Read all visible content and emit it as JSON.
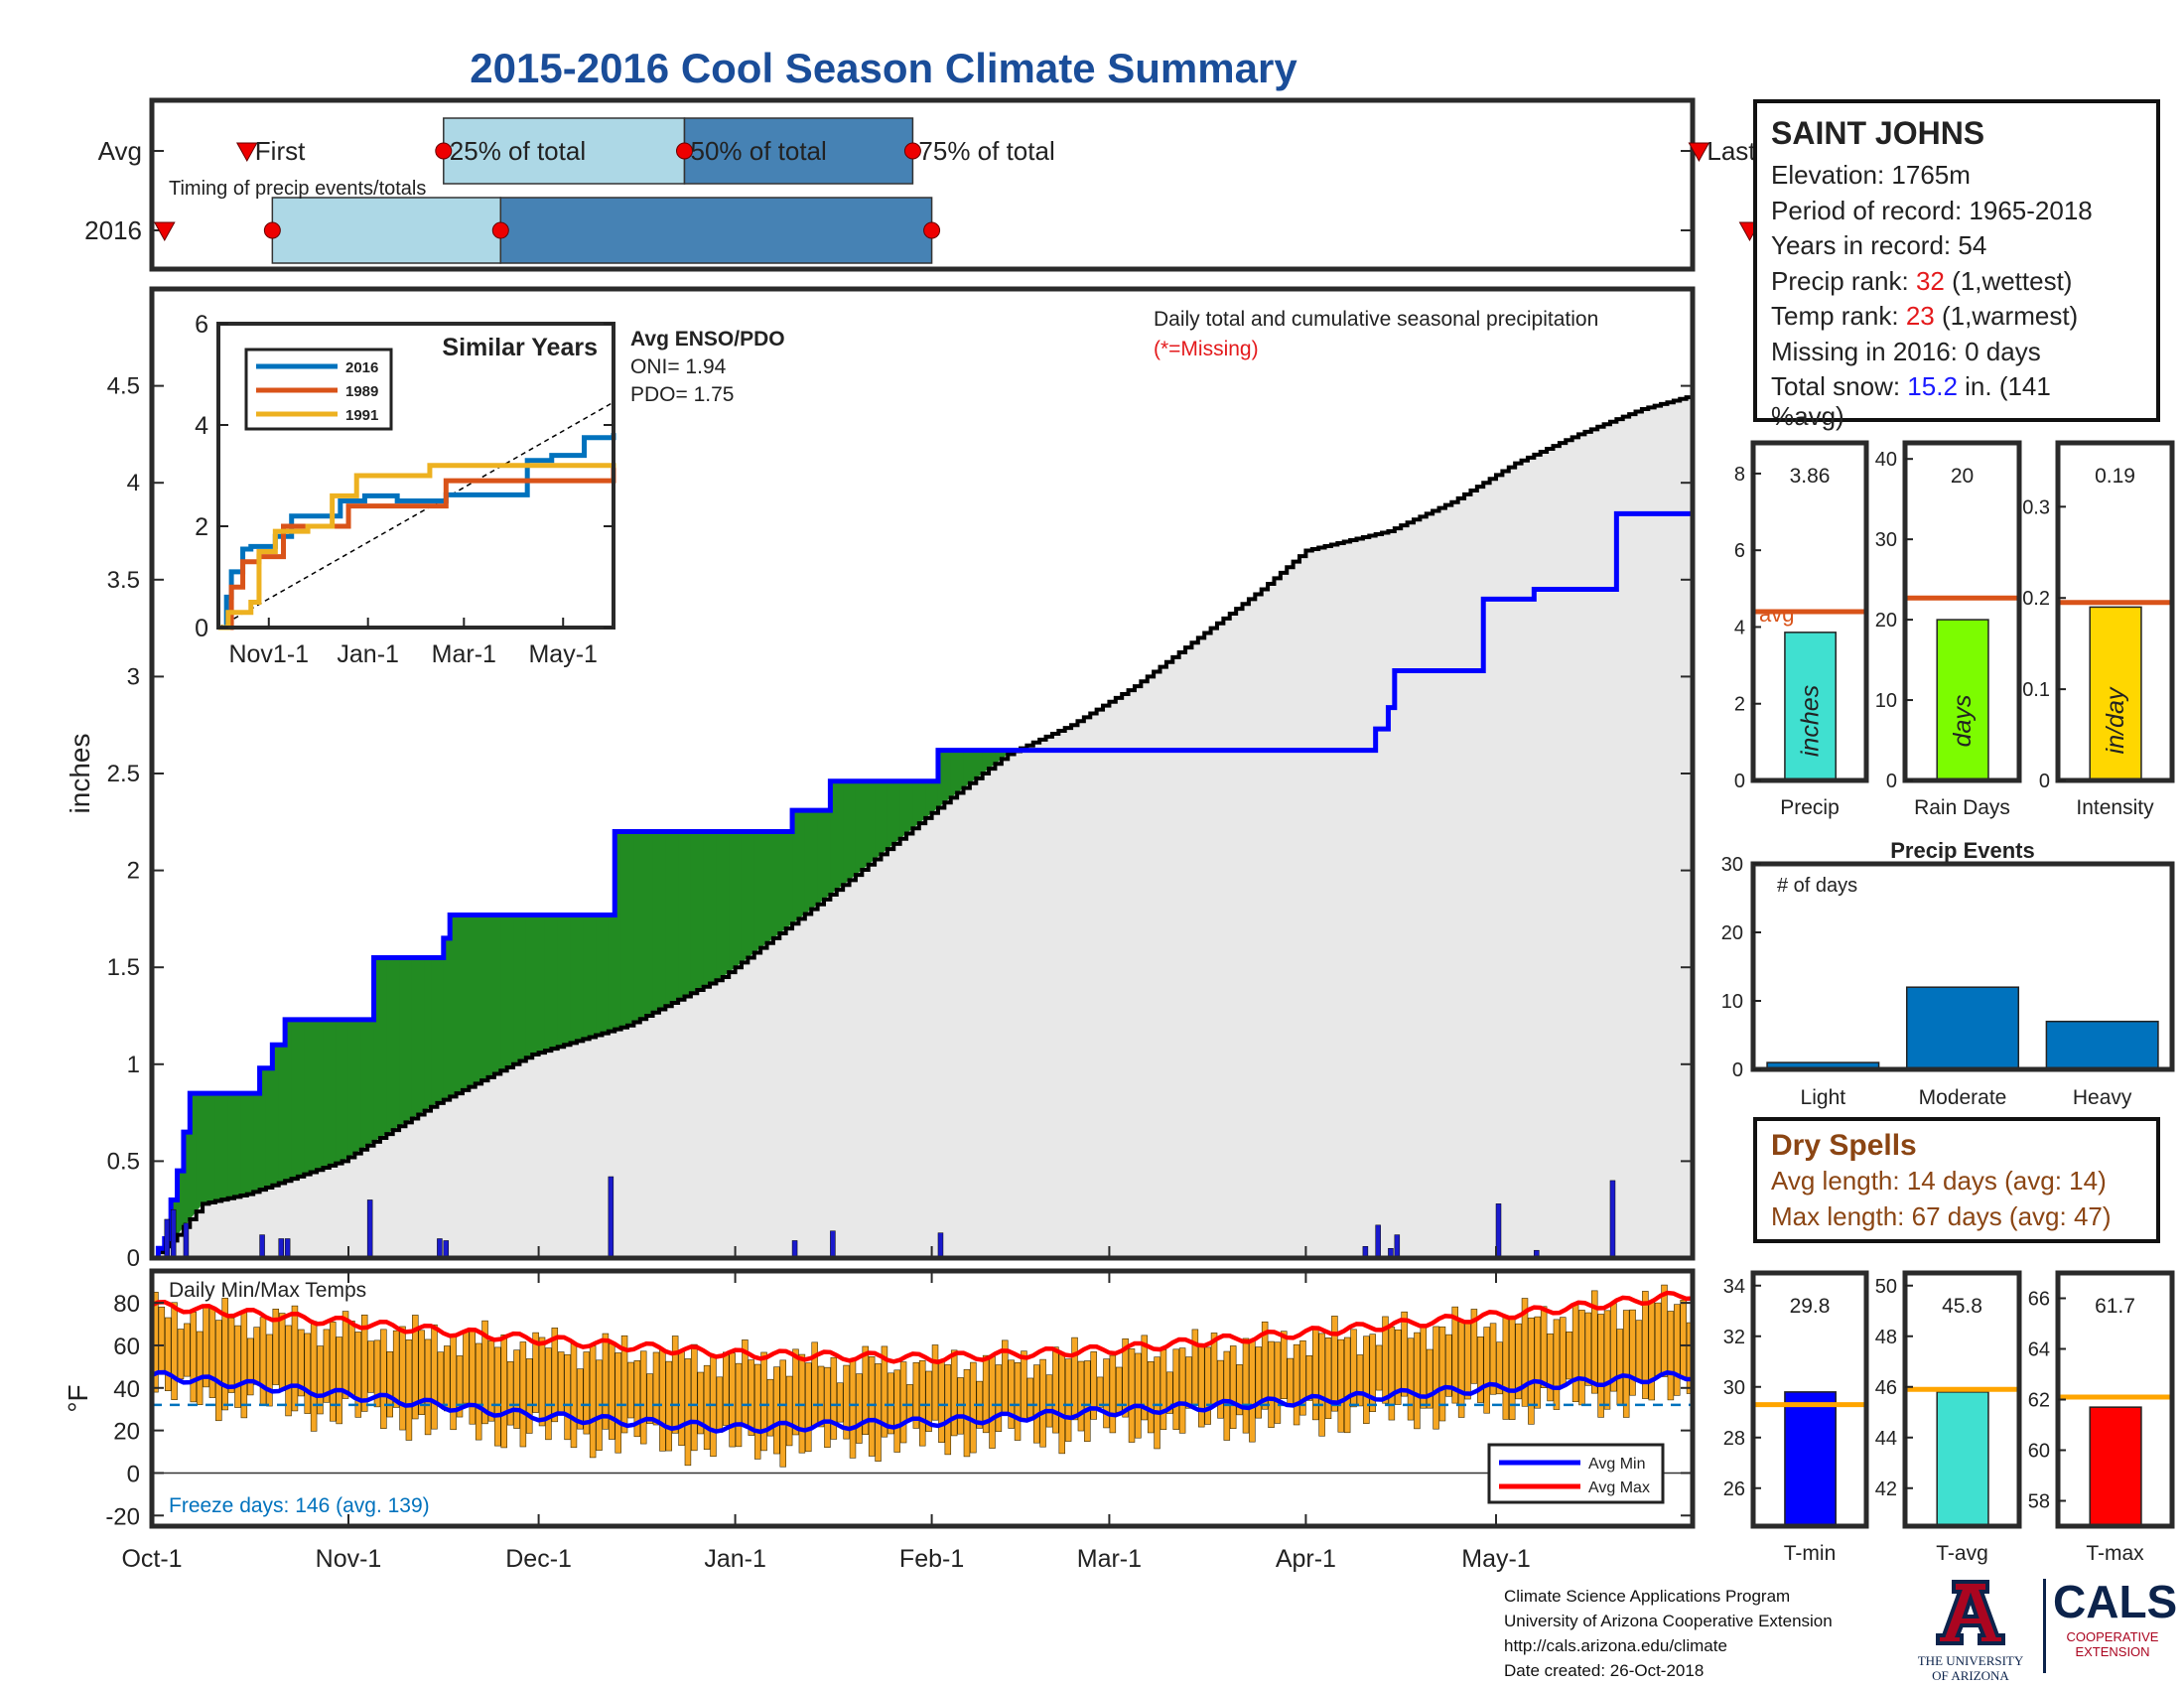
{
  "title": "2015-2016 Cool Season Climate Summary",
  "timing": {
    "rows": [
      "Avg",
      "2016"
    ],
    "label": "Timing of precip events/totals",
    "markers": [
      "First",
      "25% of total",
      "50% of total",
      "75% of total",
      "Last"
    ],
    "avg_days": {
      "first": 15,
      "p25": 46,
      "p50": 84,
      "p75": 120,
      "last": 244
    },
    "y2016_days": {
      "first": 2,
      "p25": 19,
      "p50": 55,
      "p75": 123,
      "last": 252
    }
  },
  "station": {
    "name": "SAINT JOHNS",
    "elevation_label": "Elevation: 1765m",
    "period_label": "Period of record: 1965-2018",
    "years_label": "Years in record: 54",
    "precip_rank_prefix": "Precip rank: ",
    "precip_rank_value": "32",
    "precip_rank_suffix": " (1,wettest)",
    "temp_rank_prefix": "Temp rank: ",
    "temp_rank_value": "23",
    "temp_rank_suffix": " (1,warmest)",
    "missing_label": "Missing in 2016: 0 days",
    "snow_prefix": "Total snow: ",
    "snow_value": "15.2",
    "snow_suffix": " in. (141",
    "snow_suffix2": "%avg)"
  },
  "dry_spells": {
    "title": "Dry Spells",
    "avg_label": "Avg length: 14 days (avg: 14)",
    "max_label": "Max length: 67 days (avg: 47)"
  },
  "footer": {
    "line1": "Climate Science Applications Program",
    "line2": "University of Arizona Cooperative Extension",
    "line3": "http://cals.arizona.edu/climate",
    "line4": " Date created: 26-Oct-2018",
    "ua_line1": "THE UNIVERSITY",
    "ua_line2": "OF ARIZONA",
    "cals": "CALS",
    "cals_line1": "COOPERATIVE",
    "cals_line2": "EXTENSION"
  },
  "colors": {
    "title": "#1a4d99",
    "wetter": "#228b22",
    "drier": "#b8860b",
    "observed": "#0000ff",
    "climatology_fill": "#e8e8e8",
    "avg_line": "#d95319",
    "temp_bar": "#f5a623"
  },
  "chart_data": [
    {
      "id": "precip_cumulative",
      "type": "area",
      "annotation": "Daily total and cumulative seasonal precipitation",
      "missing_note": "(*=Missing)",
      "ylabel": "inches",
      "ylim": [
        0,
        5
      ],
      "yticks": [
        0,
        0.5,
        1,
        1.5,
        2,
        2.5,
        3,
        3.5,
        4,
        4.5
      ],
      "xticks": [
        "Oct-1",
        "Nov-1",
        "Dec-1",
        "Jan-1",
        "Feb-1",
        "Mar-1",
        "Apr-1",
        "May-1"
      ],
      "xtick_days": [
        0,
        31,
        61,
        92,
        123,
        151,
        182,
        212
      ],
      "x_days": 243,
      "climatology_points": [
        [
          0,
          0
        ],
        [
          4,
          0.12
        ],
        [
          8,
          0.28
        ],
        [
          15,
          0.33
        ],
        [
          30,
          0.5
        ],
        [
          45,
          0.8
        ],
        [
          60,
          1.05
        ],
        [
          75,
          1.2
        ],
        [
          90,
          1.45
        ],
        [
          100,
          1.7
        ],
        [
          110,
          1.95
        ],
        [
          125,
          2.35
        ],
        [
          135,
          2.6
        ],
        [
          145,
          2.75
        ],
        [
          155,
          2.95
        ],
        [
          165,
          3.2
        ],
        [
          175,
          3.45
        ],
        [
          182,
          3.65
        ],
        [
          195,
          3.75
        ],
        [
          205,
          3.9
        ],
        [
          215,
          4.1
        ],
        [
          225,
          4.25
        ],
        [
          235,
          4.38
        ],
        [
          243,
          4.45
        ]
      ],
      "observed_steps": [
        [
          0,
          0
        ],
        [
          1,
          0.05
        ],
        [
          2,
          0.1
        ],
        [
          3,
          0.3
        ],
        [
          4,
          0.45
        ],
        [
          5,
          0.65
        ],
        [
          6,
          0.85
        ],
        [
          16,
          0.85
        ],
        [
          17,
          0.98
        ],
        [
          19,
          1.1
        ],
        [
          21,
          1.23
        ],
        [
          34,
          1.23
        ],
        [
          35,
          1.55
        ],
        [
          45,
          1.55
        ],
        [
          46,
          1.65
        ],
        [
          47,
          1.77
        ],
        [
          72,
          1.77
        ],
        [
          73,
          2.2
        ],
        [
          100,
          2.2
        ],
        [
          101,
          2.31
        ],
        [
          106,
          2.31
        ],
        [
          107,
          2.46
        ],
        [
          123,
          2.46
        ],
        [
          124,
          2.62
        ],
        [
          191,
          2.62
        ],
        [
          193,
          2.73
        ],
        [
          195,
          2.84
        ],
        [
          196,
          3.03
        ],
        [
          209,
          3.03
        ],
        [
          210,
          3.4
        ],
        [
          217,
          3.4
        ],
        [
          218,
          3.45
        ],
        [
          230,
          3.45
        ],
        [
          231,
          3.84
        ],
        [
          243,
          3.84
        ]
      ],
      "daily_bars": [
        [
          2,
          0.2
        ],
        [
          3,
          0.25
        ],
        [
          5,
          0.18
        ],
        [
          17,
          0.12
        ],
        [
          20,
          0.1
        ],
        [
          21,
          0.1
        ],
        [
          34,
          0.3
        ],
        [
          45,
          0.1
        ],
        [
          46,
          0.09
        ],
        [
          72,
          0.42
        ],
        [
          101,
          0.09
        ],
        [
          107,
          0.14
        ],
        [
          124,
          0.13
        ],
        [
          191,
          0.06
        ],
        [
          193,
          0.17
        ],
        [
          195,
          0.05
        ],
        [
          196,
          0.12
        ],
        [
          212,
          0.28
        ],
        [
          218,
          0.04
        ],
        [
          230,
          0.4
        ]
      ]
    },
    {
      "id": "similar_years",
      "type": "line",
      "title": "Similar Years",
      "ylim": [
        0,
        6
      ],
      "yticks": [
        0,
        2,
        4,
        6
      ],
      "xticks": [
        "Nov1-1",
        "Jan-1",
        "Mar-1",
        "May-1"
      ],
      "enso_title": "Avg ENSO/PDO",
      "oni_label": "ONI= 1.94",
      "pdo_label": "PDO= 1.75",
      "series": [
        {
          "name": "2016",
          "color": "#0072bd",
          "points": [
            [
              0,
              0
            ],
            [
              5,
              0.6
            ],
            [
              8,
              1.1
            ],
            [
              15,
              1.55
            ],
            [
              20,
              1.6
            ],
            [
              35,
              1.8
            ],
            [
              45,
              2.2
            ],
            [
              60,
              2.2
            ],
            [
              75,
              2.5
            ],
            [
              90,
              2.6
            ],
            [
              110,
              2.5
            ],
            [
              140,
              2.62
            ],
            [
              180,
              2.62
            ],
            [
              190,
              3.3
            ],
            [
              205,
              3.4
            ],
            [
              225,
              3.75
            ],
            [
              243,
              3.84
            ]
          ]
        },
        {
          "name": "1989",
          "color": "#d95319",
          "points": [
            [
              0,
              0
            ],
            [
              8,
              0.8
            ],
            [
              15,
              1.3
            ],
            [
              25,
              1.4
            ],
            [
              40,
              2.0
            ],
            [
              60,
              2.0
            ],
            [
              80,
              2.4
            ],
            [
              110,
              2.4
            ],
            [
              140,
              2.9
            ],
            [
              243,
              3.2
            ]
          ]
        },
        {
          "name": "1991",
          "color": "#edb120",
          "points": [
            [
              0,
              0
            ],
            [
              6,
              0.3
            ],
            [
              20,
              0.5
            ],
            [
              25,
              1.5
            ],
            [
              35,
              1.9
            ],
            [
              55,
              2.0
            ],
            [
              70,
              2.6
            ],
            [
              85,
              3.0
            ],
            [
              110,
              3.0
            ],
            [
              130,
              3.2
            ],
            [
              243,
              3.25
            ]
          ]
        }
      ]
    },
    {
      "id": "precip_bars",
      "type": "bar",
      "categories": [
        "Precip",
        "Rain Days",
        "Intensity"
      ],
      "values": [
        3.86,
        20,
        0.19
      ],
      "value_labels": [
        "3.86",
        "20",
        "0.19"
      ],
      "averages": [
        4.4,
        22.7,
        0.195
      ],
      "avg_label": "avg",
      "units": [
        "inches",
        "days",
        "in/day"
      ],
      "ylims": [
        [
          0,
          8.8
        ],
        [
          0,
          42
        ],
        [
          0,
          0.37
        ]
      ],
      "yticks": [
        [
          0,
          2,
          4,
          6,
          8
        ],
        [
          0,
          10,
          20,
          30,
          40
        ],
        [
          0,
          0.1,
          0.2,
          0.3
        ]
      ],
      "colors": [
        "#40e0d0",
        "#7cfc00",
        "#ffd700"
      ]
    },
    {
      "id": "precip_events",
      "type": "bar",
      "title": "Precip Events",
      "annotation": "# of days",
      "categories": [
        "Light",
        "Moderate",
        "Heavy"
      ],
      "values": [
        1,
        12,
        7
      ],
      "ylim": [
        0,
        30
      ],
      "yticks": [
        0,
        10,
        20,
        30
      ],
      "color": "#0072bd"
    },
    {
      "id": "daily_temps",
      "type": "bar",
      "title": "Daily Min/Max Temps",
      "ylabel": "°F",
      "ylim": [
        -25,
        95
      ],
      "yticks": [
        -20,
        0,
        20,
        40,
        60,
        80
      ],
      "freeze_label": "Freeze days: 146 (avg. 139)",
      "freeze_line": 32,
      "legend": [
        "Avg Min",
        "Avg Max"
      ],
      "avg_min": [
        [
          0,
          46
        ],
        [
          30,
          37
        ],
        [
          60,
          27
        ],
        [
          92,
          21
        ],
        [
          123,
          24
        ],
        [
          151,
          29
        ],
        [
          182,
          34
        ],
        [
          212,
          40
        ],
        [
          243,
          46
        ]
      ],
      "avg_max": [
        [
          0,
          79
        ],
        [
          30,
          71
        ],
        [
          60,
          63
        ],
        [
          92,
          56
        ],
        [
          123,
          54
        ],
        [
          151,
          58
        ],
        [
          182,
          66
        ],
        [
          212,
          74
        ],
        [
          243,
          84
        ]
      ]
    },
    {
      "id": "temp_bars",
      "type": "bar",
      "categories": [
        "T-min",
        "T-avg",
        "T-max"
      ],
      "values": [
        29.8,
        45.8,
        61.7
      ],
      "value_labels": [
        "29.8",
        "45.8",
        "61.7"
      ],
      "averages": [
        29.3,
        45.9,
        62.1
      ],
      "ylims": [
        [
          24.5,
          34.5
        ],
        [
          40.5,
          50.5
        ],
        [
          57,
          67
        ]
      ],
      "yticks": [
        [
          26,
          28,
          30,
          32,
          34
        ],
        [
          42,
          44,
          46,
          48,
          50
        ],
        [
          58,
          60,
          62,
          64,
          66
        ]
      ],
      "colors": [
        "#0000ff",
        "#40e0d0",
        "#ff0000"
      ]
    }
  ]
}
